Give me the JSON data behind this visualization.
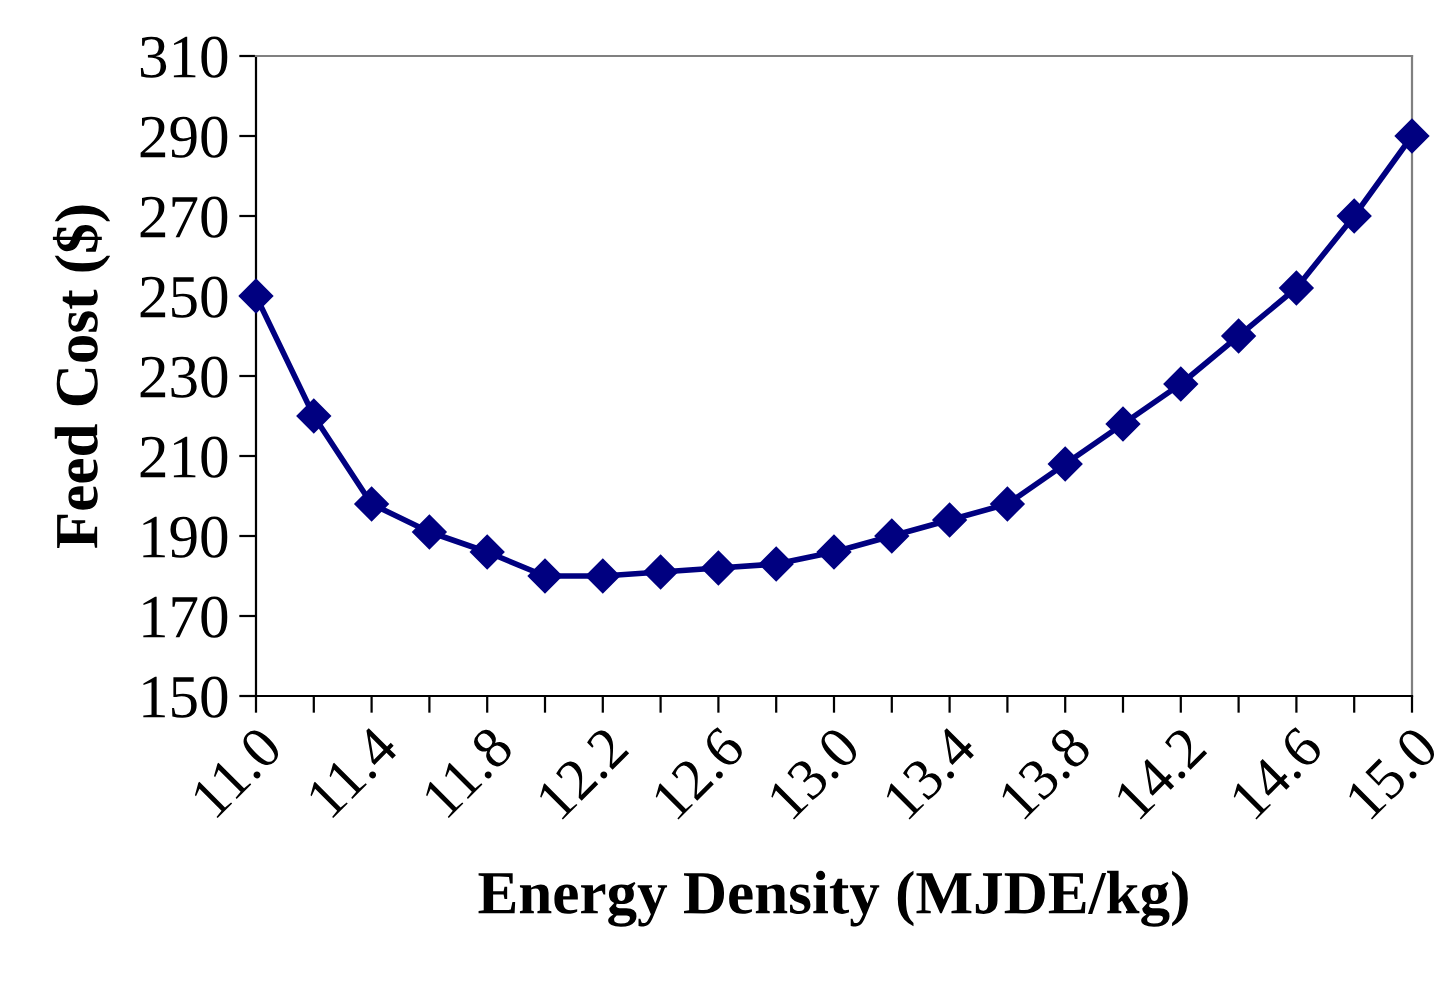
{
  "chart_data": {
    "type": "line",
    "xlabel": "Energy Density (MJDE/kg)",
    "ylabel": "Feed Cost ($)",
    "x": [
      11.0,
      11.2,
      11.4,
      11.6,
      11.8,
      12.0,
      12.2,
      12.4,
      12.6,
      12.8,
      13.0,
      13.2,
      13.4,
      13.6,
      13.8,
      14.0,
      14.2,
      14.4,
      14.6,
      14.8,
      15.0
    ],
    "series": [
      {
        "color": "#000080",
        "values": [
          250,
          220,
          198,
          191,
          186,
          180,
          180,
          181,
          182,
          183,
          186,
          190,
          194,
          198,
          208,
          218,
          228,
          240,
          252,
          270,
          290
        ]
      }
    ],
    "xlim": [
      11.0,
      15.0
    ],
    "xticks": [
      {
        "value": 11.0,
        "label": "11.0"
      },
      {
        "value": 11.2,
        "label": null
      },
      {
        "value": 11.4,
        "label": "11.4"
      },
      {
        "value": 11.6,
        "label": null
      },
      {
        "value": 11.8,
        "label": "11.8"
      },
      {
        "value": 12.0,
        "label": null
      },
      {
        "value": 12.2,
        "label": "12.2"
      },
      {
        "value": 12.4,
        "label": null
      },
      {
        "value": 12.6,
        "label": "12.6"
      },
      {
        "value": 12.8,
        "label": null
      },
      {
        "value": 13.0,
        "label": "13.0"
      },
      {
        "value": 13.2,
        "label": null
      },
      {
        "value": 13.4,
        "label": "13.4"
      },
      {
        "value": 13.6,
        "label": null
      },
      {
        "value": 13.8,
        "label": "13.8"
      },
      {
        "value": 14.0,
        "label": null
      },
      {
        "value": 14.2,
        "label": "14.2"
      },
      {
        "value": 14.4,
        "label": null
      },
      {
        "value": 14.6,
        "label": "14.6"
      },
      {
        "value": 14.8,
        "label": null
      },
      {
        "value": 15.0,
        "label": "15.0"
      }
    ],
    "ylim": [
      150,
      310
    ],
    "yticks": [
      150,
      170,
      190,
      210,
      230,
      250,
      270,
      290,
      310
    ],
    "grid": false,
    "legend": false,
    "marker": "diamond",
    "line_style": "solid"
  }
}
